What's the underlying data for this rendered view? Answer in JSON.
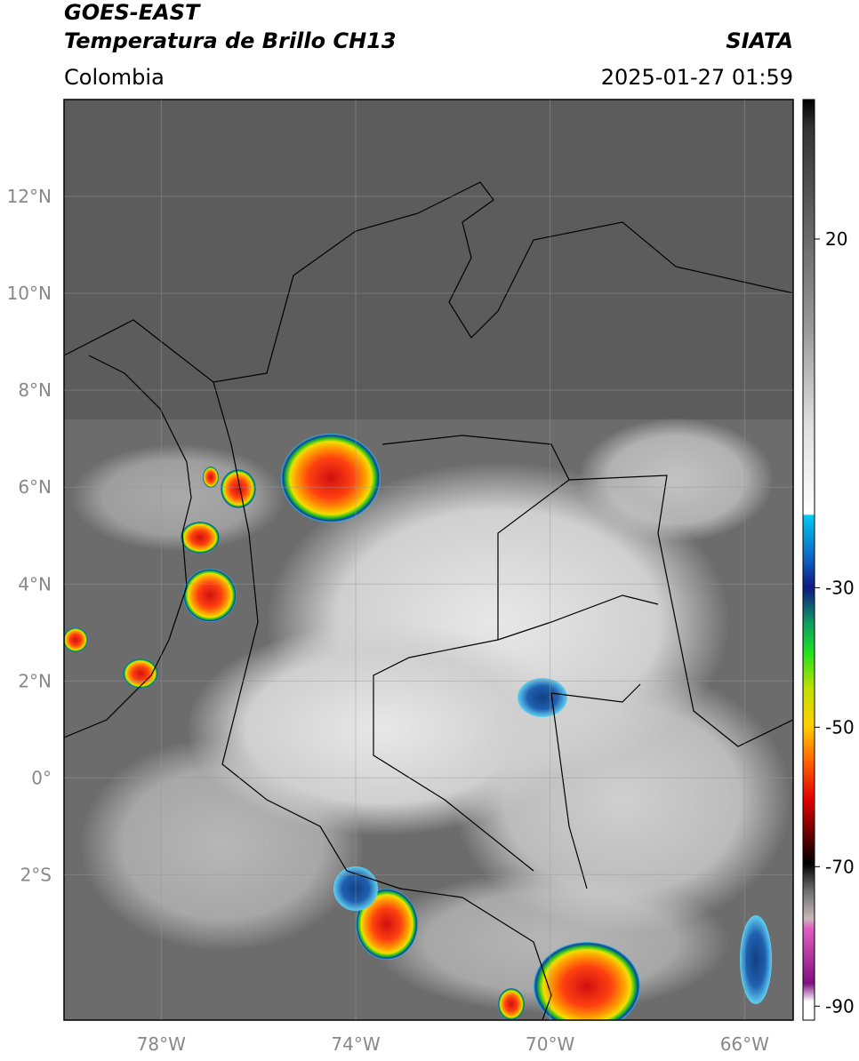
{
  "header": {
    "title": "GOES-EAST",
    "subtitle": "Temperatura de Brillo CH13",
    "source": "SIATA",
    "region": "Colombia",
    "timestamp": "2025-01-27 01:59"
  },
  "map": {
    "lon_range": [
      -80,
      -65
    ],
    "lat_range": [
      -5,
      14
    ],
    "lat_ticks": [
      {
        "value": 12,
        "label": "12°N"
      },
      {
        "value": 10,
        "label": "10°N"
      },
      {
        "value": 8,
        "label": "8°N"
      },
      {
        "value": 6,
        "label": "6°N"
      },
      {
        "value": 4,
        "label": "4°N"
      },
      {
        "value": 2,
        "label": "2°N"
      },
      {
        "value": 0,
        "label": "0°"
      },
      {
        "value": -2,
        "label": "2°S"
      }
    ],
    "lon_ticks": [
      {
        "value": -78,
        "label": "78°W"
      },
      {
        "value": -74,
        "label": "74°W"
      },
      {
        "value": -70,
        "label": "70°W"
      },
      {
        "value": -66,
        "label": "66°W"
      }
    ]
  },
  "colorbar": {
    "range": [
      -92,
      40
    ],
    "ticks": [
      20,
      -30,
      -50,
      -70,
      -90
    ]
  }
}
